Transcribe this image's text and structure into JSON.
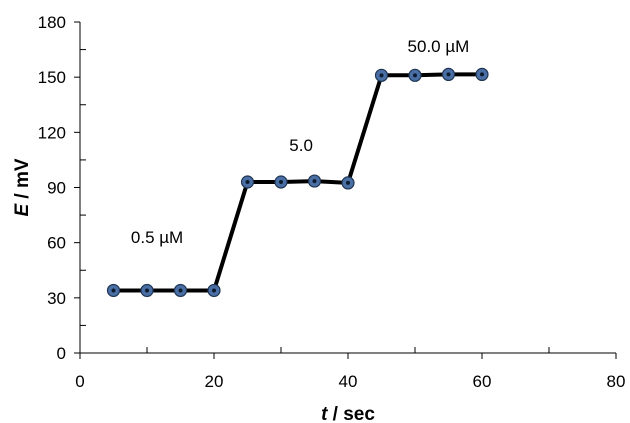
{
  "chart_data": {
    "type": "line",
    "x": [
      5,
      10,
      15,
      20,
      25,
      30,
      35,
      40,
      45,
      50,
      55,
      60
    ],
    "series": [
      {
        "values": [
          34,
          34,
          34,
          34,
          93,
          93,
          93.5,
          92.5,
          151,
          151,
          151.5,
          151.5
        ]
      }
    ],
    "xlim": [
      0,
      80
    ],
    "ylim": [
      0,
      180
    ],
    "x_ticks": [
      0,
      20,
      40,
      60,
      80
    ],
    "y_ticks": [
      0,
      30,
      60,
      90,
      120,
      150,
      180
    ],
    "xlabel_var": "t",
    "xlabel_unit": " / sec",
    "ylabel_var": "E",
    "ylabel_unit": " / mV",
    "annotations": [
      {
        "text": "0.5 µM",
        "x": 11.5,
        "y": 63
      },
      {
        "text": "5.0",
        "x": 33,
        "y": 113
      },
      {
        "text": "50.0 µM",
        "x": 53.5,
        "y": 167
      }
    ],
    "line_color": "#000000",
    "marker_color": "#4a6fa5",
    "marker_edge": "#1f3553"
  }
}
